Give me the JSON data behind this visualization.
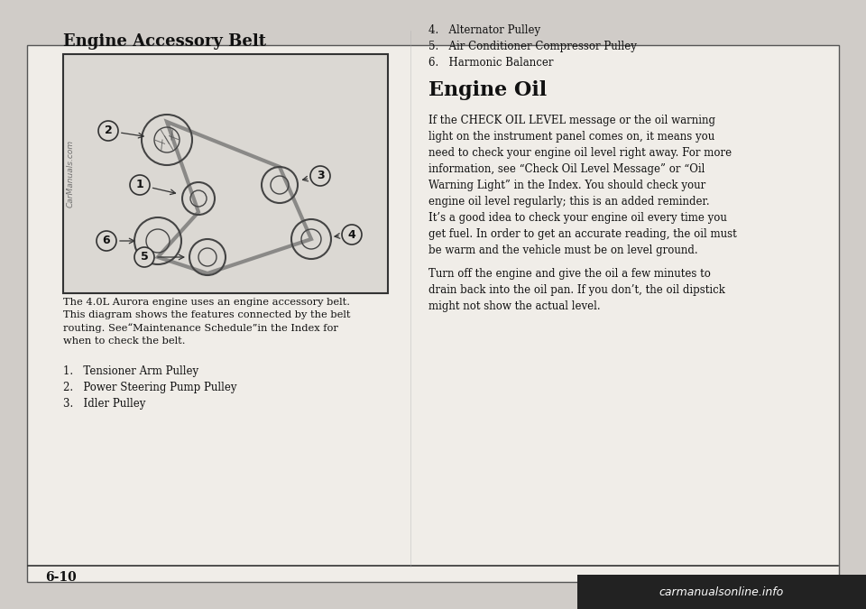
{
  "page_bg": "#d0ccc8",
  "content_bg": "#e8e5e0",
  "white_bg": "#f0ede8",
  "border_color": "#555555",
  "text_color": "#111111",
  "title_left": "Engine Accessory Belt",
  "title_right": "Engine Oil",
  "list_items_left_1_3": [
    "1.   Tensioner Arm Pulley",
    "2.   Power Steering Pump Pulley",
    "3.   Idler Pulley"
  ],
  "list_items_right_4_6": [
    "4.   Alternator Pulley",
    "5.   Air Conditioner Compressor Pulley",
    "6.   Harmonic Balancer"
  ],
  "caption_text": "The 4.0L Aurora engine uses an engine accessory belt.\nThis diagram shows the features connected by the belt\nrouting. See“Maintenance Schedule”in the Index for\nwhen to check the belt.",
  "engine_oil_para1": "If the CHECK OIL LEVEL message or the oil warning\nlight on the instrument panel comes on, it means you\nneed to check your engine oil level right away. For more\ninformation, see “Check Oil Level Message” or “Oil\nWarning Light” in the Index. You should check your\nengine oil level regularly; this is an added reminder.",
  "engine_oil_para2": "It’s a good idea to check your engine oil every time you\nget fuel. In order to get an accurate reading, the oil must\nbe warm and the vehicle must be on level ground.",
  "engine_oil_para3": "Turn off the engine and give the oil a few minutes to\ndrain back into the oil pan. If you don’t, the oil dipstick\nmight not show the actual level.",
  "page_number": "6-10",
  "watermark": "CarManuals.com",
  "footer_watermark": "carmanualsonline.info"
}
